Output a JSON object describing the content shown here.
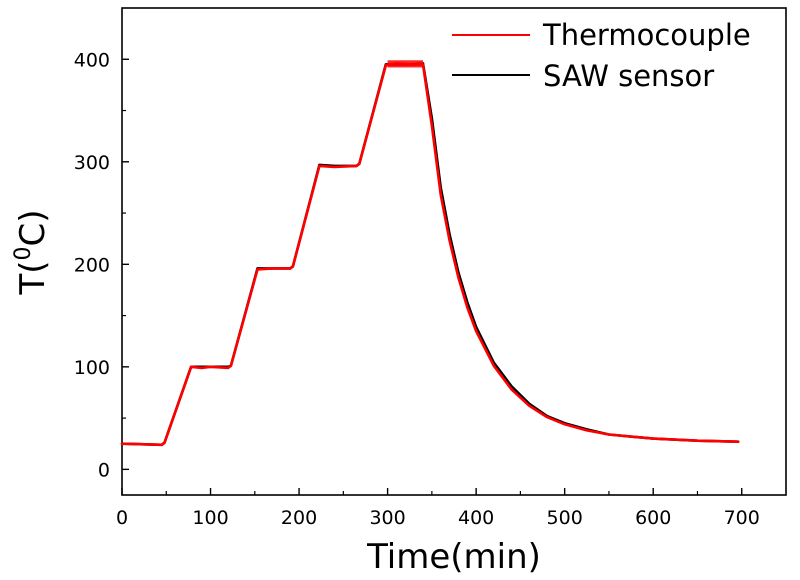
{
  "chart_data": {
    "type": "line",
    "xlabel": "Time(min)",
    "ylabel": {
      "main": "T(",
      "sup": "0",
      "tail": "C)"
    },
    "xlim": [
      0,
      750
    ],
    "ylim": [
      -25,
      450
    ],
    "xticks": [
      0,
      100,
      200,
      300,
      400,
      500,
      600,
      700
    ],
    "yticks": [
      0,
      100,
      200,
      300,
      400
    ],
    "grid": false,
    "legend_position": "top-right",
    "series": [
      {
        "name": "Thermocouple",
        "color": "#ff0000",
        "points": [
          [
            0,
            25
          ],
          [
            45,
            24
          ],
          [
            48,
            26
          ],
          [
            78,
            100
          ],
          [
            90,
            99
          ],
          [
            100,
            100
          ],
          [
            120,
            99
          ],
          [
            123,
            101
          ],
          [
            153,
            195
          ],
          [
            170,
            196
          ],
          [
            190,
            196
          ],
          [
            193,
            198
          ],
          [
            223,
            296
          ],
          [
            240,
            295
          ],
          [
            265,
            296
          ],
          [
            268,
            298
          ],
          [
            298,
            394
          ],
          [
            310,
            396
          ],
          [
            325,
            395
          ],
          [
            340,
            395
          ],
          [
            350,
            335
          ],
          [
            360,
            268
          ],
          [
            370,
            223
          ],
          [
            380,
            187
          ],
          [
            390,
            158
          ],
          [
            400,
            135
          ],
          [
            420,
            101
          ],
          [
            440,
            78
          ],
          [
            460,
            62
          ],
          [
            480,
            51
          ],
          [
            500,
            44
          ],
          [
            525,
            38
          ],
          [
            550,
            34
          ],
          [
            600,
            30
          ],
          [
            650,
            28
          ],
          [
            696,
            27
          ]
        ]
      },
      {
        "name": "SAW sensor",
        "color": "#000000",
        "points": [
          [
            0,
            25
          ],
          [
            45,
            24
          ],
          [
            48,
            26
          ],
          [
            78,
            100
          ],
          [
            90,
            100
          ],
          [
            100,
            100
          ],
          [
            120,
            100
          ],
          [
            123,
            101
          ],
          [
            153,
            196
          ],
          [
            170,
            196
          ],
          [
            190,
            196
          ],
          [
            193,
            198
          ],
          [
            223,
            297
          ],
          [
            240,
            296
          ],
          [
            265,
            296
          ],
          [
            268,
            298
          ],
          [
            298,
            395
          ],
          [
            310,
            395
          ],
          [
            325,
            395
          ],
          [
            340,
            396
          ],
          [
            350,
            342
          ],
          [
            360,
            275
          ],
          [
            370,
            229
          ],
          [
            380,
            192
          ],
          [
            390,
            163
          ],
          [
            400,
            139
          ],
          [
            420,
            104
          ],
          [
            440,
            81
          ],
          [
            460,
            64
          ],
          [
            480,
            52
          ],
          [
            500,
            45
          ],
          [
            525,
            39
          ],
          [
            550,
            34
          ],
          [
            600,
            30
          ],
          [
            650,
            28
          ],
          [
            696,
            27
          ]
        ]
      }
    ]
  }
}
